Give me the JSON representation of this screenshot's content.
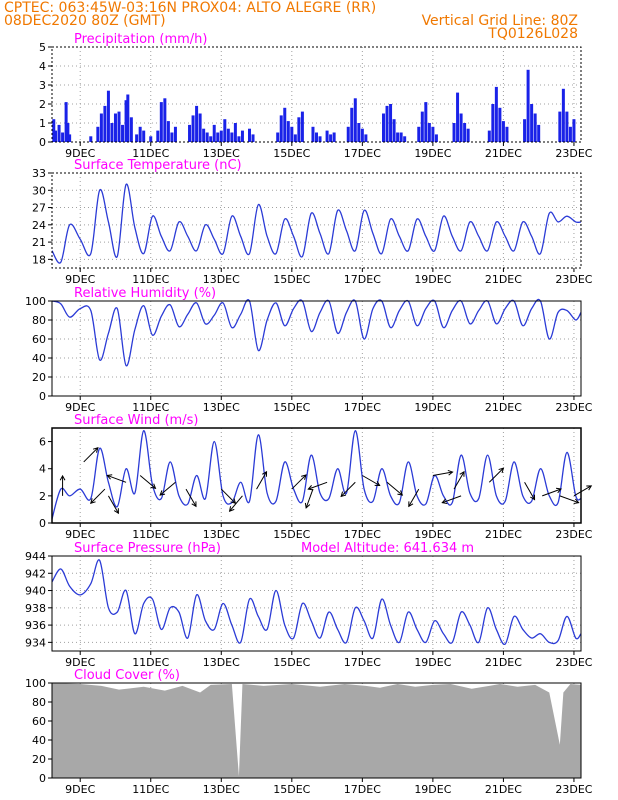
{
  "header": {
    "line1": "CPTEC:   063:45W-03:16N   PROX04: ALTO ALEGRE (RR)",
    "line2": "08DEC2020 80Z (GMT)",
    "grid_note": "Vertical Grid Line: 80Z",
    "code": "TQ0126L028"
  },
  "colors": {
    "header_text": "#f07800",
    "title": "#ff00ff",
    "line": "#2b3bd6",
    "bars": "#1a22e8",
    "cloud": "#a8a8a8",
    "grid": "#a0a0a0"
  },
  "x_axis": {
    "start_day": 8.2,
    "end_day": 23.2,
    "ticks": [
      {
        "day": 9,
        "label": "9DEC"
      },
      {
        "day": 11,
        "label": "11DEC"
      },
      {
        "day": 13,
        "label": "13DEC"
      },
      {
        "day": 15,
        "label": "15DEC"
      },
      {
        "day": 17,
        "label": "17DEC"
      },
      {
        "day": 19,
        "label": "19DEC"
      },
      {
        "day": 21,
        "label": "21DEC"
      },
      {
        "day": 23,
        "label": "23DEC"
      }
    ]
  },
  "chart_data": [
    {
      "id": "precip",
      "type": "bar",
      "title": "Precipitation (mm/h)",
      "ylim": [
        0,
        5
      ],
      "yticks": [
        0,
        1,
        2,
        3,
        4,
        5
      ],
      "grid": true,
      "x": [
        8.25,
        8.3,
        8.4,
        8.5,
        8.6,
        8.65,
        8.7,
        9.3,
        9.5,
        9.6,
        9.7,
        9.8,
        9.9,
        10.0,
        10.1,
        10.2,
        10.3,
        10.35,
        10.45,
        10.6,
        10.7,
        10.8,
        11.0,
        11.2,
        11.3,
        11.4,
        11.5,
        11.6,
        11.7,
        12.1,
        12.2,
        12.3,
        12.4,
        12.5,
        12.6,
        12.7,
        12.8,
        12.9,
        13.0,
        13.1,
        13.2,
        13.3,
        13.4,
        13.5,
        13.6,
        13.8,
        13.9,
        14.6,
        14.7,
        14.8,
        14.9,
        15.0,
        15.1,
        15.2,
        15.3,
        15.6,
        15.7,
        15.8,
        16.0,
        16.1,
        16.2,
        16.6,
        16.7,
        16.8,
        16.9,
        17.0,
        17.1,
        17.6,
        17.7,
        17.8,
        17.9,
        18.0,
        18.1,
        18.2,
        18.6,
        18.7,
        18.8,
        18.9,
        19.0,
        19.1,
        19.6,
        19.7,
        19.8,
        19.9,
        20.0,
        20.6,
        20.7,
        20.8,
        20.9,
        21.0,
        21.1,
        21.6,
        21.7,
        21.8,
        21.9,
        22.0,
        22.6,
        22.7,
        22.8,
        22.9,
        23.0
      ],
      "values": [
        1.2,
        0.6,
        0.9,
        0.5,
        2.1,
        1.0,
        0.4,
        0.3,
        0.8,
        1.5,
        1.9,
        2.7,
        1.0,
        1.5,
        1.6,
        0.9,
        2.2,
        2.5,
        1.3,
        0.4,
        0.8,
        0.6,
        0.3,
        0.6,
        2.1,
        2.3,
        1.1,
        0.5,
        0.8,
        0.9,
        1.4,
        1.9,
        1.5,
        0.7,
        0.5,
        0.3,
        0.9,
        0.5,
        0.6,
        1.2,
        0.7,
        0.5,
        1.0,
        0.3,
        0.6,
        0.7,
        0.4,
        0.5,
        1.4,
        1.8,
        1.1,
        0.8,
        0.4,
        1.3,
        1.6,
        0.8,
        0.5,
        0.3,
        0.6,
        0.4,
        0.5,
        0.8,
        1.8,
        2.3,
        1.0,
        0.7,
        0.4,
        1.5,
        1.9,
        2.0,
        1.2,
        0.5,
        0.5,
        0.3,
        0.8,
        1.6,
        2.1,
        1.0,
        0.8,
        0.4,
        1.0,
        2.6,
        1.5,
        1.0,
        0.7,
        0.6,
        2.0,
        2.9,
        1.8,
        1.1,
        0.8,
        1.2,
        3.8,
        2.0,
        1.5,
        0.9,
        1.6,
        2.8,
        1.6,
        0.8,
        1.2
      ]
    },
    {
      "id": "temp",
      "type": "line",
      "title": "Surface Temperature (nC)",
      "ylim": [
        16.5,
        33
      ],
      "yticks": [
        18,
        21,
        24,
        27,
        30,
        33
      ],
      "grid": true,
      "x": [
        8.2,
        8.45,
        8.7,
        9.0,
        9.3,
        9.55,
        9.8,
        10.05,
        10.3,
        10.55,
        10.8,
        11.05,
        11.3,
        11.55,
        11.8,
        12.05,
        12.3,
        12.55,
        12.8,
        13.05,
        13.3,
        13.55,
        13.8,
        14.05,
        14.3,
        14.55,
        14.8,
        15.05,
        15.3,
        15.55,
        15.8,
        16.05,
        16.3,
        16.55,
        16.8,
        17.05,
        17.3,
        17.55,
        17.8,
        18.05,
        18.3,
        18.55,
        18.8,
        19.05,
        19.3,
        19.55,
        19.8,
        20.05,
        20.3,
        20.55,
        20.8,
        21.05,
        21.3,
        21.55,
        21.8,
        22.05,
        22.3,
        22.55,
        22.8,
        23.05,
        23.2
      ],
      "values": [
        19.5,
        17.5,
        24.0,
        21.5,
        19.0,
        30.0,
        24.5,
        18.5,
        31.0,
        23.5,
        19.0,
        25.5,
        22.0,
        19.5,
        24.5,
        22.0,
        19.5,
        24.0,
        21.5,
        19.0,
        25.5,
        22.0,
        19.0,
        27.5,
        22.0,
        19.0,
        25.0,
        22.0,
        18.5,
        26.0,
        22.5,
        19.0,
        26.5,
        23.0,
        19.5,
        26.5,
        22.5,
        19.0,
        25.0,
        22.0,
        19.5,
        25.0,
        22.0,
        19.5,
        25.5,
        22.0,
        19.5,
        24.5,
        22.0,
        19.5,
        24.5,
        22.0,
        19.5,
        24.5,
        22.0,
        19.0,
        26.0,
        24.5,
        25.5,
        24.5,
        24.5
      ]
    },
    {
      "id": "humidity",
      "type": "line",
      "title": "Relative Humidity (%)",
      "ylim": [
        0,
        100
      ],
      "yticks": [
        0,
        20,
        40,
        60,
        80,
        100
      ],
      "grid": true,
      "x": [
        8.2,
        8.45,
        8.7,
        9.0,
        9.3,
        9.55,
        9.8,
        10.05,
        10.3,
        10.55,
        10.8,
        11.05,
        11.3,
        11.55,
        11.8,
        12.05,
        12.3,
        12.55,
        12.8,
        13.05,
        13.3,
        13.55,
        13.8,
        14.05,
        14.3,
        14.55,
        14.8,
        15.05,
        15.3,
        15.55,
        15.8,
        16.05,
        16.3,
        16.55,
        16.8,
        17.05,
        17.3,
        17.55,
        17.8,
        18.05,
        18.3,
        18.55,
        18.8,
        19.05,
        19.3,
        19.55,
        19.8,
        20.05,
        20.3,
        20.55,
        20.8,
        21.05,
        21.3,
        21.55,
        21.8,
        22.05,
        22.3,
        22.55,
        22.8,
        23.05,
        23.2
      ],
      "values": [
        100,
        97,
        83,
        92,
        90,
        38,
        66,
        92,
        32,
        70,
        95,
        64,
        84,
        96,
        73,
        86,
        98,
        76,
        85,
        98,
        72,
        86,
        100,
        48,
        80,
        98,
        74,
        92,
        100,
        68,
        88,
        100,
        66,
        88,
        100,
        60,
        92,
        100,
        72,
        90,
        100,
        74,
        92,
        100,
        72,
        90,
        100,
        76,
        90,
        100,
        76,
        92,
        100,
        74,
        92,
        100,
        60,
        88,
        90,
        80,
        88
      ]
    },
    {
      "id": "wind",
      "type": "line",
      "title": "Surface Wind (m/s)",
      "ylim": [
        0,
        7
      ],
      "yticks": [
        0,
        2,
        4,
        6
      ],
      "grid": false,
      "x": [
        8.2,
        8.45,
        8.7,
        9.0,
        9.3,
        9.55,
        9.8,
        10.05,
        10.3,
        10.55,
        10.8,
        11.05,
        11.3,
        11.55,
        11.8,
        12.05,
        12.3,
        12.55,
        12.8,
        13.05,
        13.3,
        13.55,
        13.8,
        14.05,
        14.3,
        14.55,
        14.8,
        15.05,
        15.3,
        15.55,
        15.8,
        16.05,
        16.3,
        16.55,
        16.8,
        17.05,
        17.3,
        17.55,
        17.8,
        18.05,
        18.3,
        18.55,
        18.8,
        19.05,
        19.3,
        19.55,
        19.8,
        20.05,
        20.3,
        20.55,
        20.8,
        21.05,
        21.3,
        21.55,
        21.8,
        22.05,
        22.3,
        22.55,
        22.8,
        23.05,
        23.2
      ],
      "values": [
        0.3,
        2.5,
        2.0,
        2.5,
        1.8,
        5.5,
        3.0,
        1.2,
        4.0,
        2.2,
        6.8,
        2.8,
        1.8,
        4.5,
        2.0,
        1.4,
        3.5,
        1.8,
        6.0,
        2.0,
        1.5,
        3.0,
        1.6,
        6.5,
        2.2,
        1.6,
        4.5,
        2.5,
        1.6,
        5.0,
        2.2,
        1.8,
        4.0,
        2.2,
        6.8,
        2.5,
        1.6,
        4.0,
        2.0,
        1.5,
        4.5,
        2.0,
        1.4,
        3.5,
        2.0,
        1.5,
        5.0,
        2.2,
        1.8,
        5.0,
        2.0,
        1.6,
        4.5,
        2.0,
        1.6,
        4.0,
        2.0,
        1.5,
        5.2,
        2.0,
        1.8
      ],
      "arrows": [
        {
          "day": 8.5,
          "speed": 2.0,
          "dir_deg": 90
        },
        {
          "day": 9.1,
          "speed": 4.5,
          "dir_deg": 45
        },
        {
          "day": 9.7,
          "speed": 2.5,
          "dir_deg": 225
        },
        {
          "day": 9.8,
          "speed": 2.0,
          "dir_deg": 300
        },
        {
          "day": 10.3,
          "speed": 3.0,
          "dir_deg": 160
        },
        {
          "day": 10.7,
          "speed": 3.5,
          "dir_deg": 320
        },
        {
          "day": 11.7,
          "speed": 3.0,
          "dir_deg": 220
        },
        {
          "day": 12.0,
          "speed": 2.5,
          "dir_deg": 300
        },
        {
          "day": 13.0,
          "speed": 2.5,
          "dir_deg": 315
        },
        {
          "day": 13.6,
          "speed": 2.0,
          "dir_deg": 230
        },
        {
          "day": 14.0,
          "speed": 2.5,
          "dir_deg": 60
        },
        {
          "day": 15.0,
          "speed": 2.5,
          "dir_deg": 45
        },
        {
          "day": 15.6,
          "speed": 2.5,
          "dir_deg": 250
        },
        {
          "day": 16.0,
          "speed": 3.0,
          "dir_deg": 200
        },
        {
          "day": 16.8,
          "speed": 3.0,
          "dir_deg": 225
        },
        {
          "day": 17.0,
          "speed": 3.5,
          "dir_deg": 330
        },
        {
          "day": 17.7,
          "speed": 3.0,
          "dir_deg": 320
        },
        {
          "day": 18.6,
          "speed": 2.5,
          "dir_deg": 240
        },
        {
          "day": 19.0,
          "speed": 3.5,
          "dir_deg": 10
        },
        {
          "day": 19.6,
          "speed": 2.5,
          "dir_deg": 60
        },
        {
          "day": 19.8,
          "speed": 2.0,
          "dir_deg": 200
        },
        {
          "day": 20.6,
          "speed": 3.0,
          "dir_deg": 45
        },
        {
          "day": 21.6,
          "speed": 3.0,
          "dir_deg": 300
        },
        {
          "day": 22.1,
          "speed": 2.0,
          "dir_deg": 20
        },
        {
          "day": 22.6,
          "speed": 2.0,
          "dir_deg": 340
        },
        {
          "day": 23.0,
          "speed": 2.0,
          "dir_deg": 30
        }
      ]
    },
    {
      "id": "pressure",
      "type": "line",
      "title": "Surface Pressure (hPa)",
      "altitude_label": "Model Altitude: 641.634 m",
      "ylim": [
        933,
        944
      ],
      "yticks": [
        934,
        936,
        938,
        940,
        942,
        944
      ],
      "grid": true,
      "x": [
        8.2,
        8.45,
        8.7,
        9.0,
        9.3,
        9.55,
        9.8,
        10.05,
        10.3,
        10.55,
        10.8,
        11.05,
        11.3,
        11.55,
        11.8,
        12.05,
        12.3,
        12.55,
        12.8,
        13.05,
        13.3,
        13.55,
        13.8,
        14.05,
        14.3,
        14.55,
        14.8,
        15.05,
        15.3,
        15.55,
        15.8,
        16.05,
        16.3,
        16.55,
        16.8,
        17.05,
        17.3,
        17.55,
        17.8,
        18.05,
        18.3,
        18.55,
        18.8,
        19.05,
        19.3,
        19.55,
        19.8,
        20.05,
        20.3,
        20.55,
        20.8,
        21.05,
        21.3,
        21.55,
        21.8,
        22.05,
        22.3,
        22.55,
        22.8,
        23.05,
        23.2
      ],
      "values": [
        941,
        942.5,
        940.5,
        939.5,
        940.8,
        943.5,
        938,
        937.5,
        940,
        935,
        938.5,
        939,
        935.5,
        938,
        937.5,
        934.5,
        939.5,
        936.5,
        935.5,
        938.5,
        936,
        934,
        939,
        937,
        935.5,
        940,
        936,
        934.5,
        938.5,
        936.5,
        934.5,
        937.5,
        935.5,
        934,
        938,
        936.5,
        934.5,
        939,
        936,
        934,
        937.5,
        935.5,
        934,
        936.5,
        935,
        934,
        937.5,
        936,
        934,
        938,
        935.5,
        933.8,
        937,
        935.5,
        934.5,
        935,
        934,
        934.2,
        937,
        934.5,
        935
      ]
    },
    {
      "id": "cloud",
      "type": "area",
      "title": "Cloud Cover (%)",
      "ylim": [
        0,
        100
      ],
      "yticks": [
        0,
        20,
        40,
        60,
        80,
        100
      ],
      "grid": false,
      "x": [
        8.2,
        9.0,
        9.6,
        10.1,
        10.8,
        11.4,
        11.9,
        12.4,
        12.7,
        13.3,
        13.5,
        13.6,
        14.2,
        15.0,
        15.8,
        16.5,
        17.1,
        17.5,
        18.0,
        18.5,
        19.0,
        19.5,
        20.1,
        20.6,
        20.9,
        21.4,
        21.9,
        22.3,
        22.6,
        22.7,
        22.9,
        23.2
      ],
      "values": [
        100,
        99,
        97,
        93,
        96,
        92,
        97,
        90,
        98,
        99,
        2,
        99,
        97,
        99,
        96,
        99,
        97,
        95,
        99,
        96,
        98,
        99,
        94,
        97,
        99,
        96,
        98,
        90,
        35,
        90,
        99,
        98
      ]
    }
  ]
}
